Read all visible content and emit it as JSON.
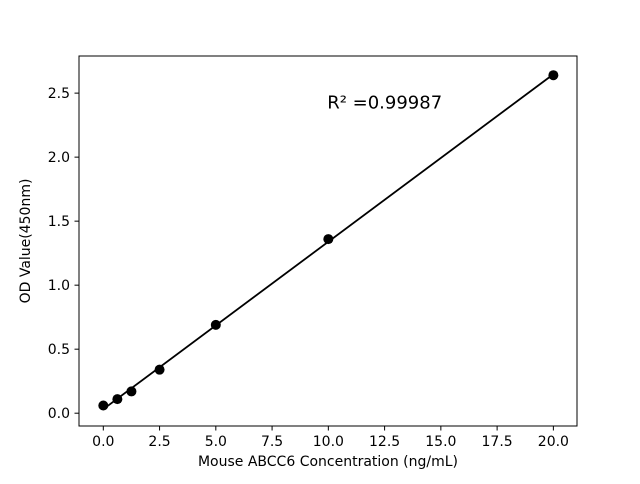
{
  "chart_data": {
    "type": "scatter",
    "title": "",
    "xlabel": "Mouse ABCC6 Concentration (ng/mL)",
    "ylabel": "OD Value(450nm)",
    "annotation": "R² =0.99987",
    "annotation_xy": [
      9.95,
      2.38
    ],
    "x": [
      0,
      0.625,
      1.25,
      2.5,
      5,
      10,
      20
    ],
    "y": [
      0.06,
      0.11,
      0.17,
      0.34,
      0.69,
      1.36,
      2.64
    ],
    "fit_line": true,
    "xlim": [
      -1.08,
      21.05
    ],
    "ylim": [
      -0.1,
      2.79
    ],
    "x_ticks": [
      0,
      2.5,
      5,
      7.5,
      10,
      12.5,
      15,
      17.5,
      20
    ],
    "x_tick_labels": [
      "0.0",
      "2.5",
      "5.0",
      "7.5",
      "10.0",
      "12.5",
      "15.0",
      "17.5",
      "20.0"
    ],
    "y_ticks": [
      0,
      0.5,
      1.0,
      1.5,
      2.0,
      2.5
    ],
    "y_tick_labels": [
      "0.0",
      "0.5",
      "1.0",
      "1.5",
      "2.0",
      "2.5"
    ],
    "grid": false,
    "legend": null,
    "marker_color": "#000000",
    "line_color": "#000000",
    "axis_color": "#000000",
    "background": "#ffffff",
    "marker_radius": 5,
    "line_width": 1.8
  }
}
